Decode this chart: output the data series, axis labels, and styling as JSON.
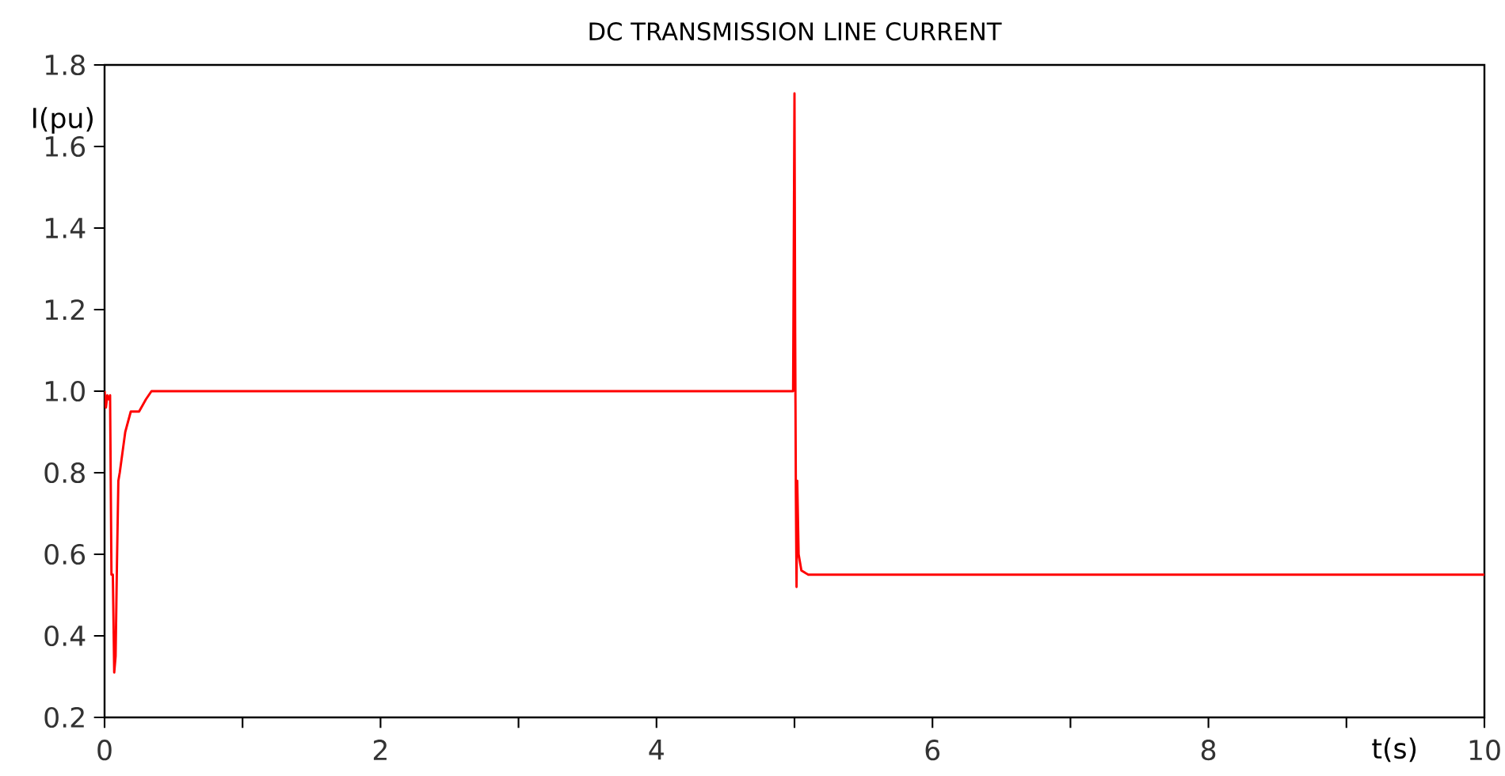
{
  "chart_data": {
    "type": "line",
    "title": "DC TRANSMISSION LINE CURRENT",
    "xlabel": "t(s)",
    "ylabel": "I(pu)",
    "xlim": [
      0,
      10
    ],
    "ylim": [
      0.2,
      1.8
    ],
    "xticks": [
      0,
      {
        "value": 1,
        "label": null
      },
      2,
      {
        "value": 3,
        "label": null
      },
      4,
      {
        "value": 5,
        "label": null
      },
      6,
      {
        "value": 7,
        "label": null
      },
      8,
      {
        "value": 9,
        "label": null
      },
      10
    ],
    "yticks": [
      0.2,
      0.4,
      0.6,
      0.8,
      {
        "value": 1,
        "label": "1.0"
      },
      1.2,
      1.4,
      1.6,
      1.8
    ],
    "series": [
      {
        "color": "#ff0000",
        "x": [
          0,
          0.01,
          0.02,
          0.03,
          0.04,
          0.05,
          0.06,
          0.07,
          0.08,
          0.09,
          0.1,
          0.11,
          0.13,
          0.15,
          0.19,
          0.25,
          0.3,
          0.34,
          0.4,
          0.6,
          1.0,
          1.5,
          2.0,
          2.5,
          3.0,
          3.5,
          4.0,
          4.5,
          4.99,
          5.0,
          5.005,
          5.01,
          5.015,
          5.02,
          5.03,
          5.05,
          5.1,
          6.0,
          7.0,
          8.0,
          9.0,
          10.0
        ],
        "values": [
          1.0,
          0.96,
          0.99,
          0.98,
          0.99,
          0.55,
          0.55,
          0.31,
          0.35,
          0.58,
          0.78,
          0.8,
          0.85,
          0.9,
          0.95,
          0.95,
          0.98,
          1.0,
          1.0,
          1.0,
          1.0,
          1.0,
          1.0,
          1.0,
          1.0,
          1.0,
          1.0,
          1.0,
          1.0,
          1.73,
          1.14,
          0.75,
          0.52,
          0.78,
          0.6,
          0.56,
          0.55,
          0.55,
          0.55,
          0.55,
          0.55,
          0.55
        ]
      }
    ]
  }
}
